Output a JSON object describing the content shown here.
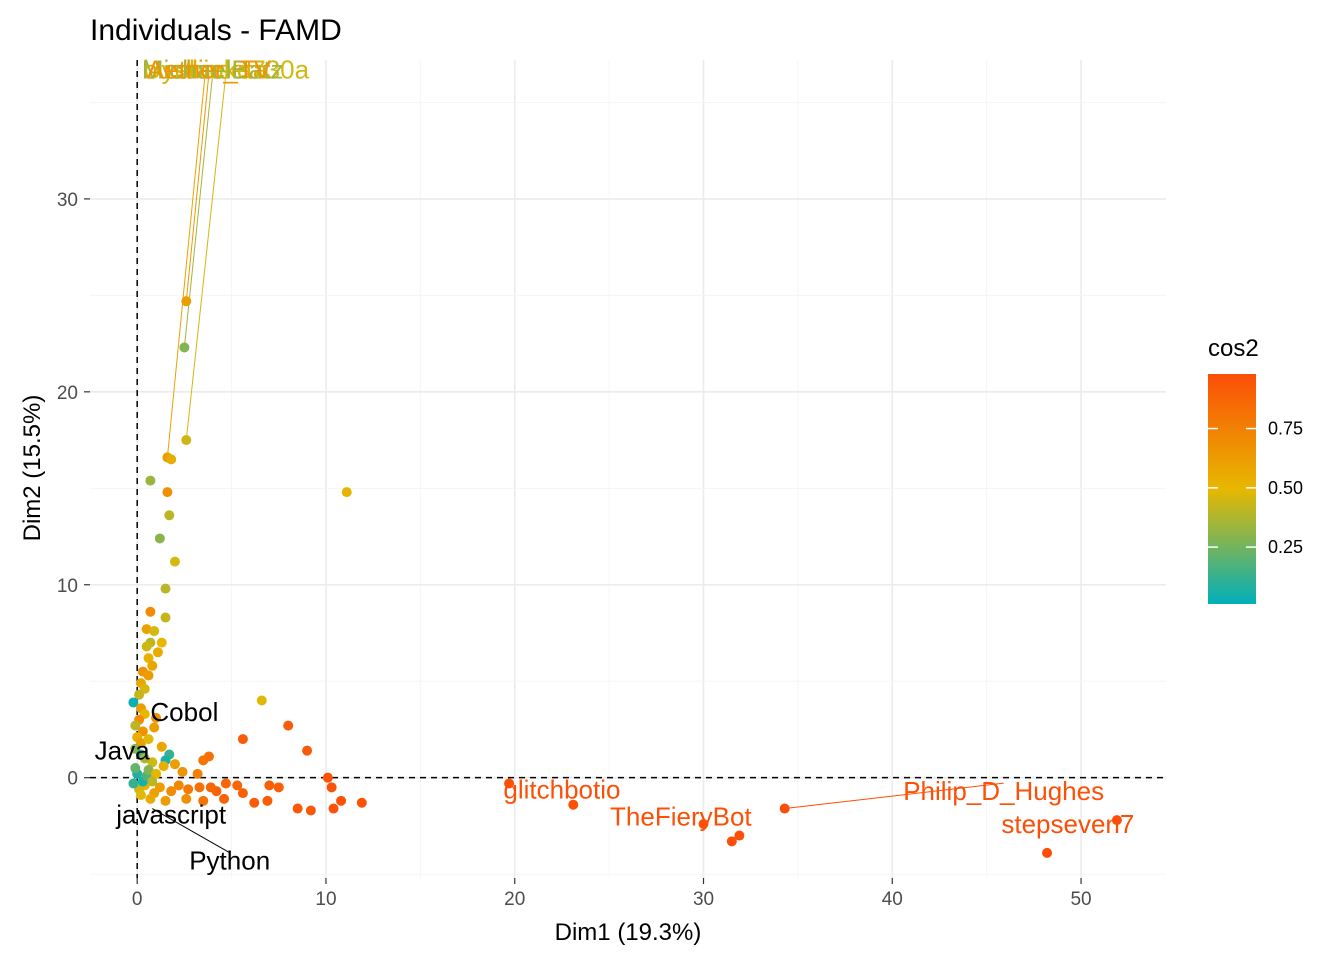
{
  "chart_data": {
    "type": "scatter",
    "title": "Individuals - FAMD",
    "xlabel": "Dim1 (19.3%)",
    "ylabel": "Dim2 (15.5%)",
    "xlim": [
      -2.5,
      54.5
    ],
    "ylim": [
      -5.2,
      37.2
    ],
    "x_ticks": [
      0,
      10,
      20,
      30,
      40,
      50
    ],
    "y_ticks": [
      0,
      10,
      20,
      30
    ],
    "grid": true,
    "reference_lines": {
      "x": 0,
      "y": 0
    },
    "color_variable": "cos2",
    "color_scale": {
      "low": "#00AFBB",
      "mid": "#E7B800",
      "high": "#FC4E07"
    },
    "legend": {
      "title": "cos2",
      "position": "right",
      "ticks": [
        0.25,
        0.5,
        0.75
      ],
      "min": 0.01,
      "max": 0.98
    },
    "points": [
      {
        "x": 2.8,
        "y": 36.6,
        "cos2": 0.42
      },
      {
        "x": 2.6,
        "y": 24.7,
        "cos2": 0.62
      },
      {
        "x": 2.5,
        "y": 22.3,
        "cos2": 0.28
      },
      {
        "x": 2.6,
        "y": 17.5,
        "cos2": 0.44
      },
      {
        "x": 1.6,
        "y": 16.6,
        "cos2": 0.62
      },
      {
        "x": 1.8,
        "y": 16.5,
        "cos2": 0.55
      },
      {
        "x": 1.6,
        "y": 14.8,
        "cos2": 0.68
      },
      {
        "x": 0.7,
        "y": 15.4,
        "cos2": 0.33
      },
      {
        "x": 11.1,
        "y": 14.8,
        "cos2": 0.52
      },
      {
        "x": 1.7,
        "y": 13.6,
        "cos2": 0.4
      },
      {
        "x": 1.2,
        "y": 12.4,
        "cos2": 0.3
      },
      {
        "x": 2.0,
        "y": 11.2,
        "cos2": 0.46
      },
      {
        "x": 1.5,
        "y": 9.8,
        "cos2": 0.4
      },
      {
        "x": 0.7,
        "y": 8.6,
        "cos2": 0.7
      },
      {
        "x": 1.5,
        "y": 8.3,
        "cos2": 0.42
      },
      {
        "x": 0.5,
        "y": 7.7,
        "cos2": 0.6
      },
      {
        "x": 0.9,
        "y": 7.6,
        "cos2": 0.46
      },
      {
        "x": 0.7,
        "y": 7.0,
        "cos2": 0.4
      },
      {
        "x": 1.3,
        "y": 7.0,
        "cos2": 0.5
      },
      {
        "x": 0.5,
        "y": 6.8,
        "cos2": 0.44
      },
      {
        "x": 1.1,
        "y": 6.5,
        "cos2": 0.56
      },
      {
        "x": 0.6,
        "y": 6.2,
        "cos2": 0.52
      },
      {
        "x": 0.8,
        "y": 5.8,
        "cos2": 0.58
      },
      {
        "x": 0.3,
        "y": 5.5,
        "cos2": 0.66
      },
      {
        "x": 0.6,
        "y": 5.3,
        "cos2": 0.62
      },
      {
        "x": 0.2,
        "y": 4.9,
        "cos2": 0.58
      },
      {
        "x": 0.4,
        "y": 4.6,
        "cos2": 0.46
      },
      {
        "x": 0.1,
        "y": 4.3,
        "cos2": 0.42
      },
      {
        "x": -0.2,
        "y": 3.9,
        "cos2": 0.03
      },
      {
        "x": 0.2,
        "y": 3.6,
        "cos2": 0.62
      },
      {
        "x": 0.4,
        "y": 3.3,
        "cos2": 0.5
      },
      {
        "x": 0.1,
        "y": 3.0,
        "cos2": 0.7
      },
      {
        "x": -0.1,
        "y": 2.7,
        "cos2": 0.4
      },
      {
        "x": 0.3,
        "y": 2.4,
        "cos2": 0.66
      },
      {
        "x": 0.0,
        "y": 2.1,
        "cos2": 0.54
      },
      {
        "x": 0.2,
        "y": 1.8,
        "cos2": 0.6
      },
      {
        "x": -0.1,
        "y": 1.5,
        "cos2": 0.3
      },
      {
        "x": 0.2,
        "y": 1.2,
        "cos2": 0.1
      },
      {
        "x": 1.7,
        "y": 1.2,
        "cos2": 0.12
      },
      {
        "x": 1.5,
        "y": 0.9,
        "cos2": 0.06
      },
      {
        "x": 6.6,
        "y": 4.0,
        "cos2": 0.48
      },
      {
        "x": 1.0,
        "y": 3.1,
        "cos2": 0.66
      },
      {
        "x": 8.0,
        "y": 2.7,
        "cos2": 0.92
      },
      {
        "x": 5.6,
        "y": 2.0,
        "cos2": 0.92
      },
      {
        "x": 9.0,
        "y": 1.4,
        "cos2": 0.92
      },
      {
        "x": 3.5,
        "y": 0.9,
        "cos2": 0.8
      },
      {
        "x": 3.8,
        "y": 1.1,
        "cos2": 0.82
      },
      {
        "x": 2.0,
        "y": 0.7,
        "cos2": 0.62
      },
      {
        "x": 1.4,
        "y": 0.6,
        "cos2": 0.55
      },
      {
        "x": 0.8,
        "y": 0.8,
        "cos2": 0.45
      },
      {
        "x": 2.4,
        "y": 0.3,
        "cos2": 0.66
      },
      {
        "x": 3.2,
        "y": 0.2,
        "cos2": 0.74
      },
      {
        "x": 10.1,
        "y": 0.0,
        "cos2": 0.96
      },
      {
        "x": 10.3,
        "y": -0.5,
        "cos2": 0.96
      },
      {
        "x": 4.7,
        "y": -0.3,
        "cos2": 0.88
      },
      {
        "x": 5.3,
        "y": -0.4,
        "cos2": 0.88
      },
      {
        "x": 7.0,
        "y": -0.4,
        "cos2": 0.9
      },
      {
        "x": 7.5,
        "y": -0.5,
        "cos2": 0.9
      },
      {
        "x": 5.6,
        "y": -0.8,
        "cos2": 0.9
      },
      {
        "x": 4.2,
        "y": -0.7,
        "cos2": 0.88
      },
      {
        "x": 3.9,
        "y": -0.5,
        "cos2": 0.86
      },
      {
        "x": 3.3,
        "y": -0.5,
        "cos2": 0.82
      },
      {
        "x": 2.7,
        "y": -0.6,
        "cos2": 0.78
      },
      {
        "x": 2.2,
        "y": -0.4,
        "cos2": 0.72
      },
      {
        "x": 1.8,
        "y": -0.7,
        "cos2": 0.7
      },
      {
        "x": 1.2,
        "y": -0.5,
        "cos2": 0.62
      },
      {
        "x": 0.9,
        "y": -0.8,
        "cos2": 0.6
      },
      {
        "x": 0.4,
        "y": -0.4,
        "cos2": 0.52
      },
      {
        "x": 0.1,
        "y": -0.6,
        "cos2": 0.44
      },
      {
        "x": -0.2,
        "y": -0.3,
        "cos2": 0.12
      },
      {
        "x": 0.3,
        "y": -0.2,
        "cos2": 0.05
      },
      {
        "x": 0.0,
        "y": 0.2,
        "cos2": 0.08
      },
      {
        "x": 0.5,
        "y": 0.1,
        "cos2": 0.18
      },
      {
        "x": -0.1,
        "y": 0.5,
        "cos2": 0.22
      },
      {
        "x": 0.6,
        "y": 0.4,
        "cos2": 0.28
      },
      {
        "x": 0.2,
        "y": -0.9,
        "cos2": 0.48
      },
      {
        "x": 0.7,
        "y": -1.1,
        "cos2": 0.56
      },
      {
        "x": 1.5,
        "y": -1.2,
        "cos2": 0.62
      },
      {
        "x": 2.6,
        "y": -1.1,
        "cos2": 0.68
      },
      {
        "x": 3.5,
        "y": -1.2,
        "cos2": 0.8
      },
      {
        "x": 4.6,
        "y": -1.1,
        "cos2": 0.88
      },
      {
        "x": 6.2,
        "y": -1.3,
        "cos2": 0.92
      },
      {
        "x": 6.9,
        "y": -1.2,
        "cos2": 0.92
      },
      {
        "x": 8.5,
        "y": -1.6,
        "cos2": 0.94
      },
      {
        "x": 9.2,
        "y": -1.7,
        "cos2": 0.94
      },
      {
        "x": 10.4,
        "y": -1.6,
        "cos2": 0.96
      },
      {
        "x": 10.8,
        "y": -1.2,
        "cos2": 0.96
      },
      {
        "x": 11.9,
        "y": -1.3,
        "cos2": 0.96
      },
      {
        "x": 1.0,
        "y": 0.2,
        "cos2": 0.5
      },
      {
        "x": 0.8,
        "y": -0.2,
        "cos2": 0.4
      },
      {
        "x": 1.3,
        "y": 1.6,
        "cos2": 0.58
      },
      {
        "x": 0.4,
        "y": 1.0,
        "cos2": 0.36
      },
      {
        "x": 0.6,
        "y": 2.0,
        "cos2": 0.48
      },
      {
        "x": 0.9,
        "y": 2.6,
        "cos2": 0.62
      },
      {
        "x": 23.1,
        "y": -1.4,
        "cos2": 0.97
      },
      {
        "x": 30.0,
        "y": -2.4,
        "cos2": 0.97
      },
      {
        "x": 31.5,
        "y": -3.3,
        "cos2": 0.97
      },
      {
        "x": 31.9,
        "y": -3.0,
        "cos2": 0.97
      },
      {
        "x": 34.3,
        "y": -1.6,
        "cos2": 0.97
      },
      {
        "x": 48.2,
        "y": -3.9,
        "cos2": 0.98
      },
      {
        "x": 51.9,
        "y": -2.2,
        "cos2": 0.98
      },
      {
        "x": 19.7,
        "y": -0.3,
        "cos2": 0.97
      }
    ],
    "labels": [
      {
        "text": "bustlinseta",
        "x": 3.6,
        "y": 36.7,
        "cos2": 0.6,
        "anchor": "middle",
        "from_x": 1.6,
        "from_y": 16.6
      },
      {
        "text": "Uyehioke730a",
        "x": 4.7,
        "y": 36.7,
        "cos2": 0.45,
        "anchor": "middle",
        "from_x": 2.6,
        "from_y": 17.5
      },
      {
        "text": "MichaelBatz",
        "x": 4.0,
        "y": 36.7,
        "cos2": 0.35,
        "anchor": "middle",
        "from_x": 2.5,
        "from_y": 22.3
      },
      {
        "text": "Aether_TV",
        "x": 3.8,
        "y": 36.7,
        "cos2": 0.65,
        "anchor": "middle",
        "from_x": 2.6,
        "from_y": 24.7
      },
      {
        "text": "Cobol",
        "x": 2.5,
        "y": 3.4,
        "cos2": 0.0,
        "anchor": "middle",
        "color": "#000000"
      },
      {
        "text": "Java",
        "x": -0.8,
        "y": 1.4,
        "cos2": 0.0,
        "anchor": "middle",
        "color": "#000000"
      },
      {
        "text": "javascript",
        "x": 1.8,
        "y": -1.9,
        "cos2": 0.0,
        "anchor": "middle",
        "color": "#000000"
      },
      {
        "text": "Python",
        "x": 4.9,
        "y": -4.3,
        "cos2": 0.0,
        "anchor": "middle",
        "color": "#000000",
        "from_x": 0.8,
        "from_y": -1.6
      },
      {
        "text": "glitchbotio",
        "x": 22.5,
        "y": -0.6,
        "cos2": 0.97,
        "anchor": "middle"
      },
      {
        "text": "TheFieryBot",
        "x": 28.8,
        "y": -2.0,
        "cos2": 0.97,
        "anchor": "middle"
      },
      {
        "text": "Philip_D_Hughes",
        "x": 45.9,
        "y": -0.7,
        "cos2": 0.97,
        "anchor": "middle",
        "from_x": 34.3,
        "from_y": -1.6
      },
      {
        "text": "stepseven7",
        "x": 49.3,
        "y": -2.4,
        "cos2": 0.98,
        "anchor": "middle"
      }
    ]
  }
}
